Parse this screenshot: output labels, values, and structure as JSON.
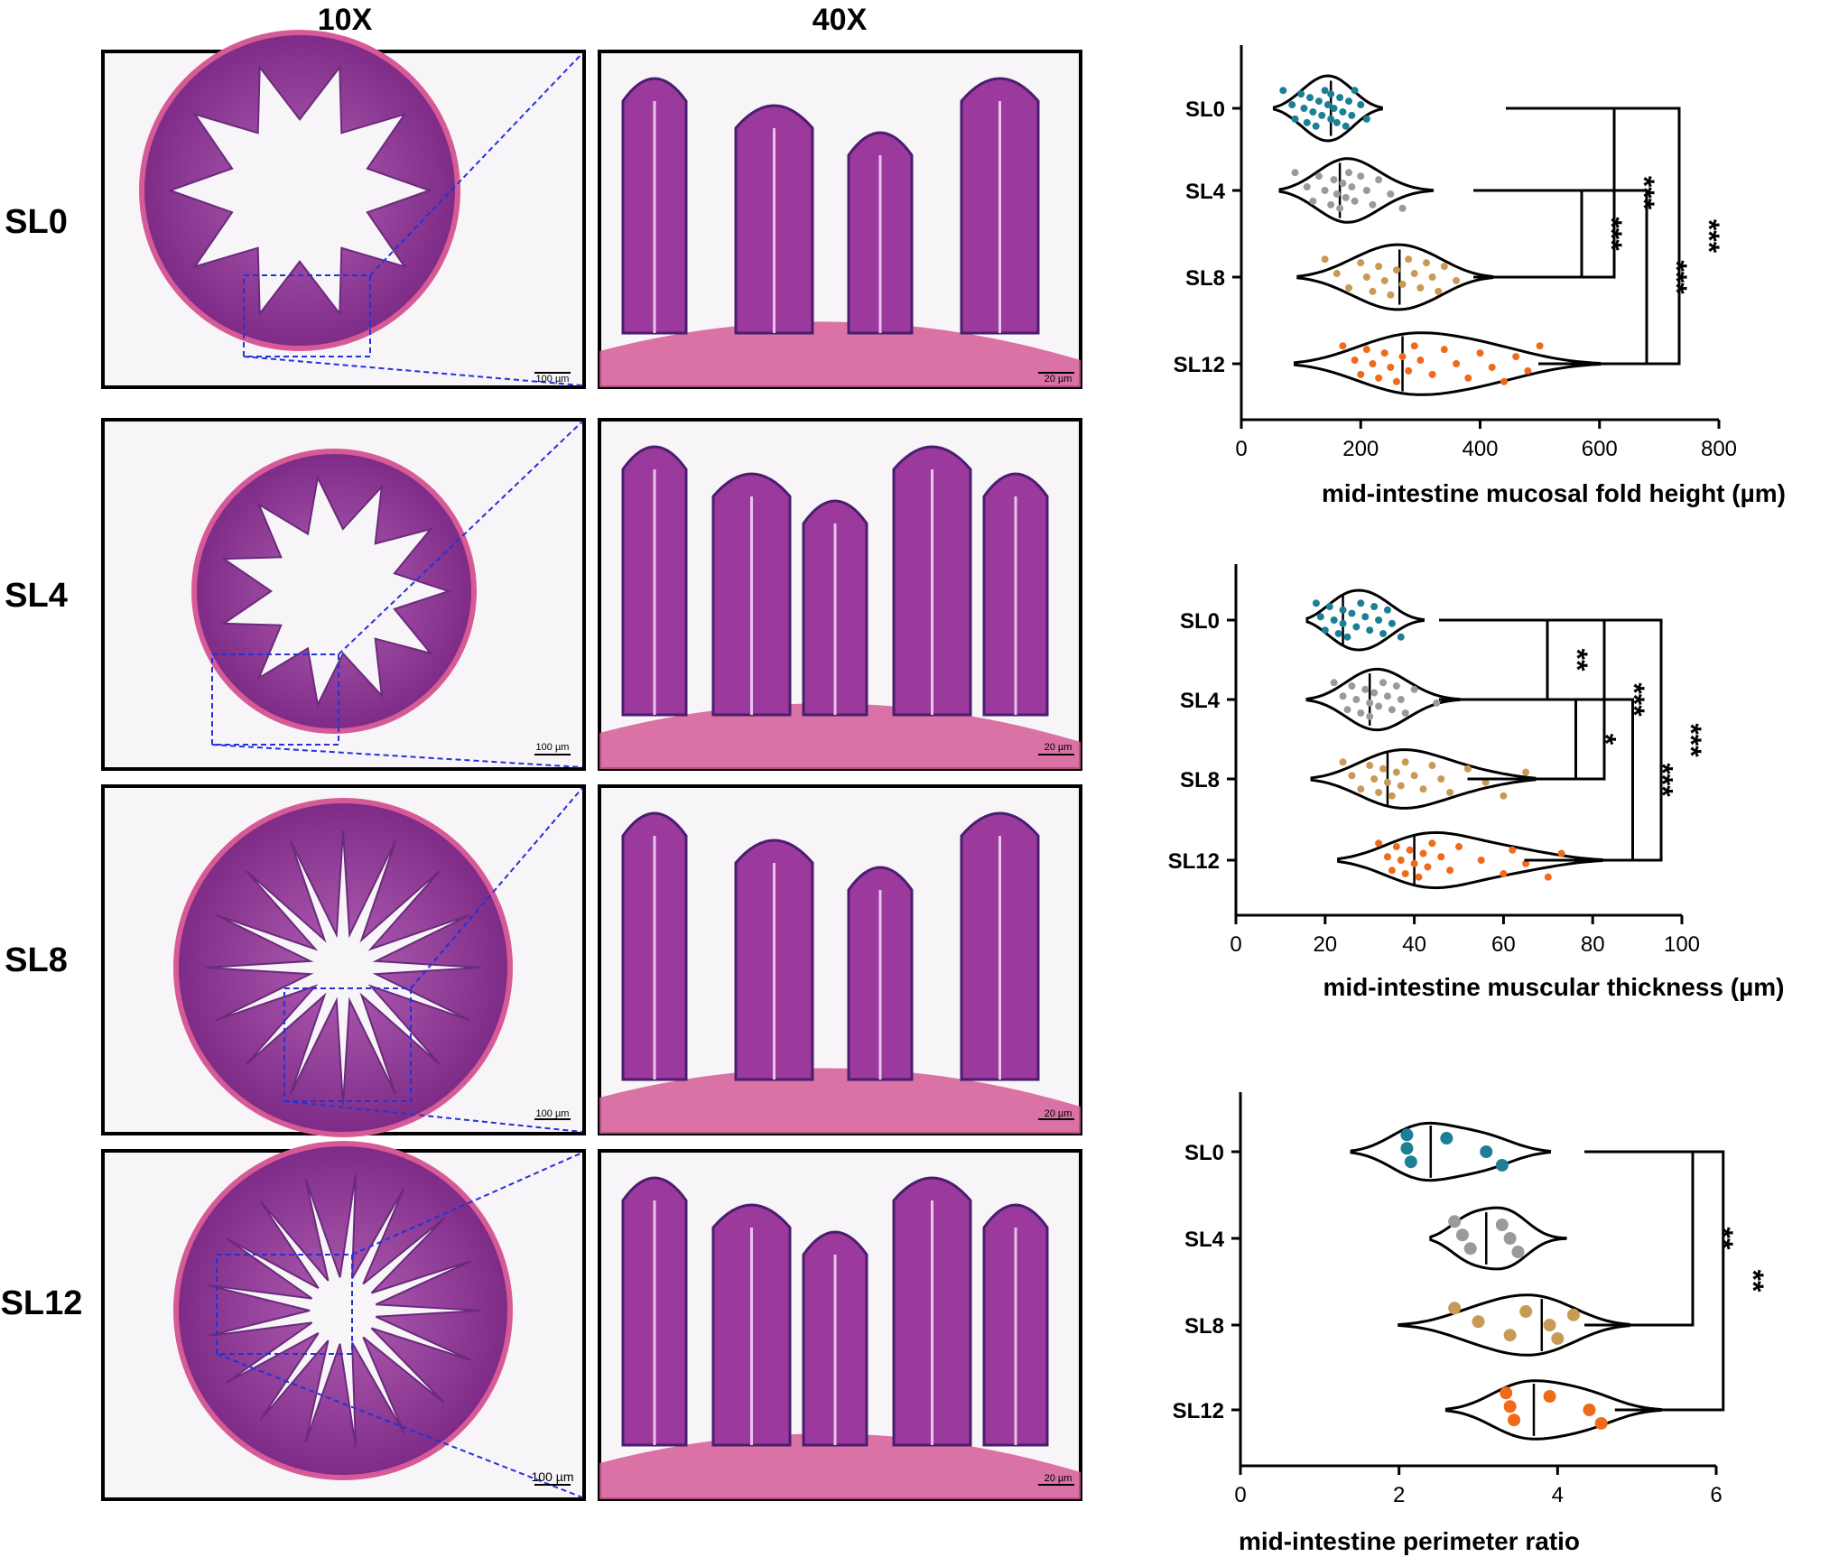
{
  "micrographs": {
    "column_headers": [
      "10X",
      "40X"
    ],
    "row_labels": [
      "SL0",
      "SL4",
      "SL8",
      "SL12"
    ],
    "scale_bars": {
      "low": "100 µm",
      "high": "20 µm"
    },
    "stain_colors": {
      "tissue": "#9b3a9c",
      "lumen": "#f7f5f8",
      "nuclei": "#4a1d6e",
      "muscle": "#d65a96",
      "inset": "#2432d6"
    }
  },
  "chart_data": [
    {
      "type": "violin",
      "categories": [
        "SL0",
        "SL4",
        "SL8",
        "SL12"
      ],
      "xlabel": "mid-intestine mucosal fold height (µm)",
      "xlim": [
        0,
        800
      ],
      "xticks": [
        0,
        200,
        400,
        600,
        800
      ],
      "series": [
        {
          "category": "SL0",
          "color": "#1b7f95",
          "min": 55,
          "max": 235,
          "median": 150,
          "points": [
            70,
            85,
            90,
            100,
            105,
            110,
            115,
            120,
            125,
            130,
            135,
            140,
            145,
            150,
            150,
            155,
            160,
            165,
            170,
            175,
            180,
            185,
            190,
            200,
            210
          ]
        },
        {
          "category": "SL4",
          "color": "#9a9a9a",
          "min": 65,
          "max": 320,
          "median": 165,
          "points": [
            90,
            110,
            120,
            130,
            140,
            150,
            155,
            160,
            165,
            170,
            175,
            180,
            185,
            190,
            200,
            210,
            220,
            230,
            250,
            270
          ]
        },
        {
          "category": "SL8",
          "color": "#c89a55",
          "min": 95,
          "max": 420,
          "median": 265,
          "points": [
            140,
            160,
            180,
            200,
            210,
            220,
            230,
            240,
            250,
            260,
            270,
            280,
            290,
            300,
            310,
            320,
            330,
            340,
            360
          ]
        },
        {
          "category": "SL12",
          "color": "#f06a1a",
          "min": 90,
          "max": 600,
          "median": 270,
          "points": [
            170,
            190,
            200,
            210,
            220,
            230,
            240,
            250,
            260,
            270,
            280,
            290,
            300,
            320,
            340,
            360,
            380,
            400,
            420,
            440,
            460,
            480,
            500
          ]
        }
      ],
      "brackets": [
        {
          "from": "SL4",
          "to": "SL8",
          "label": "***"
        },
        {
          "from": "SL0",
          "to": "SL8",
          "label": "***"
        },
        {
          "from": "SL4",
          "to": "SL12",
          "label": "***"
        },
        {
          "from": "SL0",
          "to": "SL12",
          "label": "***"
        }
      ]
    },
    {
      "type": "violin",
      "categories": [
        "SL0",
        "SL4",
        "SL8",
        "SL12"
      ],
      "xlabel": "mid-intestine muscular thickness (µm)",
      "xlim": [
        0,
        100
      ],
      "xticks": [
        0,
        20,
        40,
        60,
        80,
        100
      ],
      "series": [
        {
          "category": "SL0",
          "color": "#1b7f95",
          "min": 16,
          "max": 42,
          "median": 24,
          "points": [
            18,
            19,
            20,
            21,
            22,
            23,
            24,
            24,
            25,
            26,
            27,
            28,
            29,
            30,
            31,
            32,
            33,
            34,
            35,
            37
          ]
        },
        {
          "category": "SL4",
          "color": "#9a9a9a",
          "min": 16,
          "max": 50,
          "median": 30,
          "points": [
            22,
            24,
            25,
            26,
            27,
            28,
            29,
            30,
            30,
            31,
            32,
            33,
            34,
            35,
            36,
            37,
            38,
            40,
            45
          ]
        },
        {
          "category": "SL8",
          "color": "#c89a55",
          "min": 17,
          "max": 67,
          "median": 34,
          "points": [
            24,
            26,
            28,
            30,
            31,
            32,
            33,
            34,
            35,
            36,
            37,
            38,
            40,
            42,
            44,
            46,
            48,
            52,
            56,
            60,
            65
          ]
        },
        {
          "category": "SL12",
          "color": "#f06a1a",
          "min": 23,
          "max": 82,
          "median": 40,
          "points": [
            32,
            34,
            35,
            36,
            37,
            38,
            39,
            40,
            41,
            42,
            43,
            44,
            46,
            48,
            50,
            55,
            60,
            62,
            65,
            70,
            73
          ]
        }
      ],
      "brackets": [
        {
          "from": "SL0",
          "to": "SL4",
          "label": "**"
        },
        {
          "from": "SL4",
          "to": "SL8",
          "label": "*"
        },
        {
          "from": "SL0",
          "to": "SL8",
          "label": "***"
        },
        {
          "from": "SL4",
          "to": "SL12",
          "label": "***"
        },
        {
          "from": "SL0",
          "to": "SL12",
          "label": "***"
        }
      ]
    },
    {
      "type": "violin",
      "categories": [
        "SL0",
        "SL4",
        "SL8",
        "SL12"
      ],
      "xlabel": "mid-intestine perimeter ratio",
      "xlim": [
        0,
        6
      ],
      "xticks": [
        0,
        2,
        4,
        6
      ],
      "series": [
        {
          "category": "SL0",
          "color": "#1b7f95",
          "min": 1.4,
          "max": 3.9,
          "median": 2.4,
          "points": [
            2.1,
            2.1,
            2.15,
            2.6,
            3.1,
            3.3
          ]
        },
        {
          "category": "SL4",
          "color": "#9a9a9a",
          "min": 2.4,
          "max": 4.1,
          "median": 3.1,
          "points": [
            2.7,
            2.8,
            2.9,
            3.3,
            3.4,
            3.5
          ]
        },
        {
          "category": "SL8",
          "color": "#c89a55",
          "min": 2.0,
          "max": 4.9,
          "median": 3.8,
          "points": [
            2.7,
            3.0,
            3.4,
            3.6,
            3.9,
            4.0,
            4.2
          ]
        },
        {
          "category": "SL12",
          "color": "#f06a1a",
          "min": 2.6,
          "max": 5.3,
          "median": 3.7,
          "points": [
            3.35,
            3.4,
            3.45,
            3.9,
            4.4,
            4.55
          ]
        }
      ],
      "brackets": [
        {
          "from": "SL0",
          "to": "SL8",
          "label": "**"
        },
        {
          "from": "SL0",
          "to": "SL12",
          "label": "**"
        }
      ]
    }
  ]
}
